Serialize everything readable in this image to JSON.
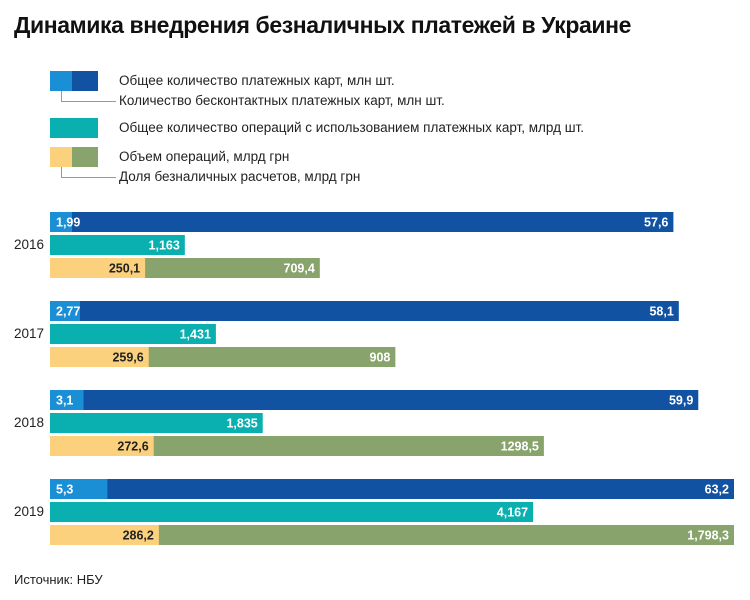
{
  "title": "Динамика внедрения безналичных платежей в Украине",
  "source": "Источник: НБУ",
  "colors": {
    "cards_total": "#1152a3",
    "cards_contactless": "#1a8fd6",
    "operations_count": "#0ab0b0",
    "volume_total": "#88a46c",
    "volume_cashless": "#fbd17e"
  },
  "legend": {
    "cards_total": "Общее количество платежных карт, млн шт.",
    "cards_contactless": "Количество бесконтактных платежных карт, млн шт.",
    "operations_count": "Общее количество операций с использованием платежных карт, млрд шт.",
    "volume_total": "Объем операций, млрд грн",
    "volume_cashless": "Доля безналичных расчетов, млрд грн"
  },
  "chart_data": {
    "type": "bar",
    "orientation": "horizontal",
    "categories": [
      "2016",
      "2017",
      "2018",
      "2019"
    ],
    "series": [
      {
        "name": "Общее количество платежных карт, млн шт.",
        "key": "cards_total",
        "values": [
          57.6,
          58.1,
          59.9,
          63.2
        ],
        "labels": [
          "57,6",
          "58,1",
          "59,9",
          "63,2"
        ]
      },
      {
        "name": "Количество бесконтактных платежных карт, млн шт.",
        "key": "cards_contactless",
        "values": [
          1.99,
          2.77,
          3.1,
          5.3
        ],
        "labels": [
          "1,99",
          "2,77",
          "3,1",
          "5,3"
        ]
      },
      {
        "name": "Общее количество операций с использованием платежных карт, млрд шт.",
        "key": "operations_count",
        "values": [
          1.163,
          1.431,
          1.835,
          4.167
        ],
        "labels": [
          "1,163",
          "1,431",
          "1,835",
          "4,167"
        ]
      },
      {
        "name": "Объем операций, млрд грн",
        "key": "volume_total",
        "values": [
          709.4,
          908,
          1298.5,
          1798.3
        ],
        "labels": [
          "709,4",
          "908",
          "1298,5",
          "1,798,3"
        ]
      },
      {
        "name": "Доля безналичных расчетов, млрд грн",
        "key": "volume_cashless",
        "values": [
          250.1,
          259.6,
          272.6,
          286.2
        ],
        "labels": [
          "250,1",
          "259,6",
          "272,6",
          "286,2"
        ]
      }
    ],
    "grid": false,
    "legend_position": "top-left"
  }
}
